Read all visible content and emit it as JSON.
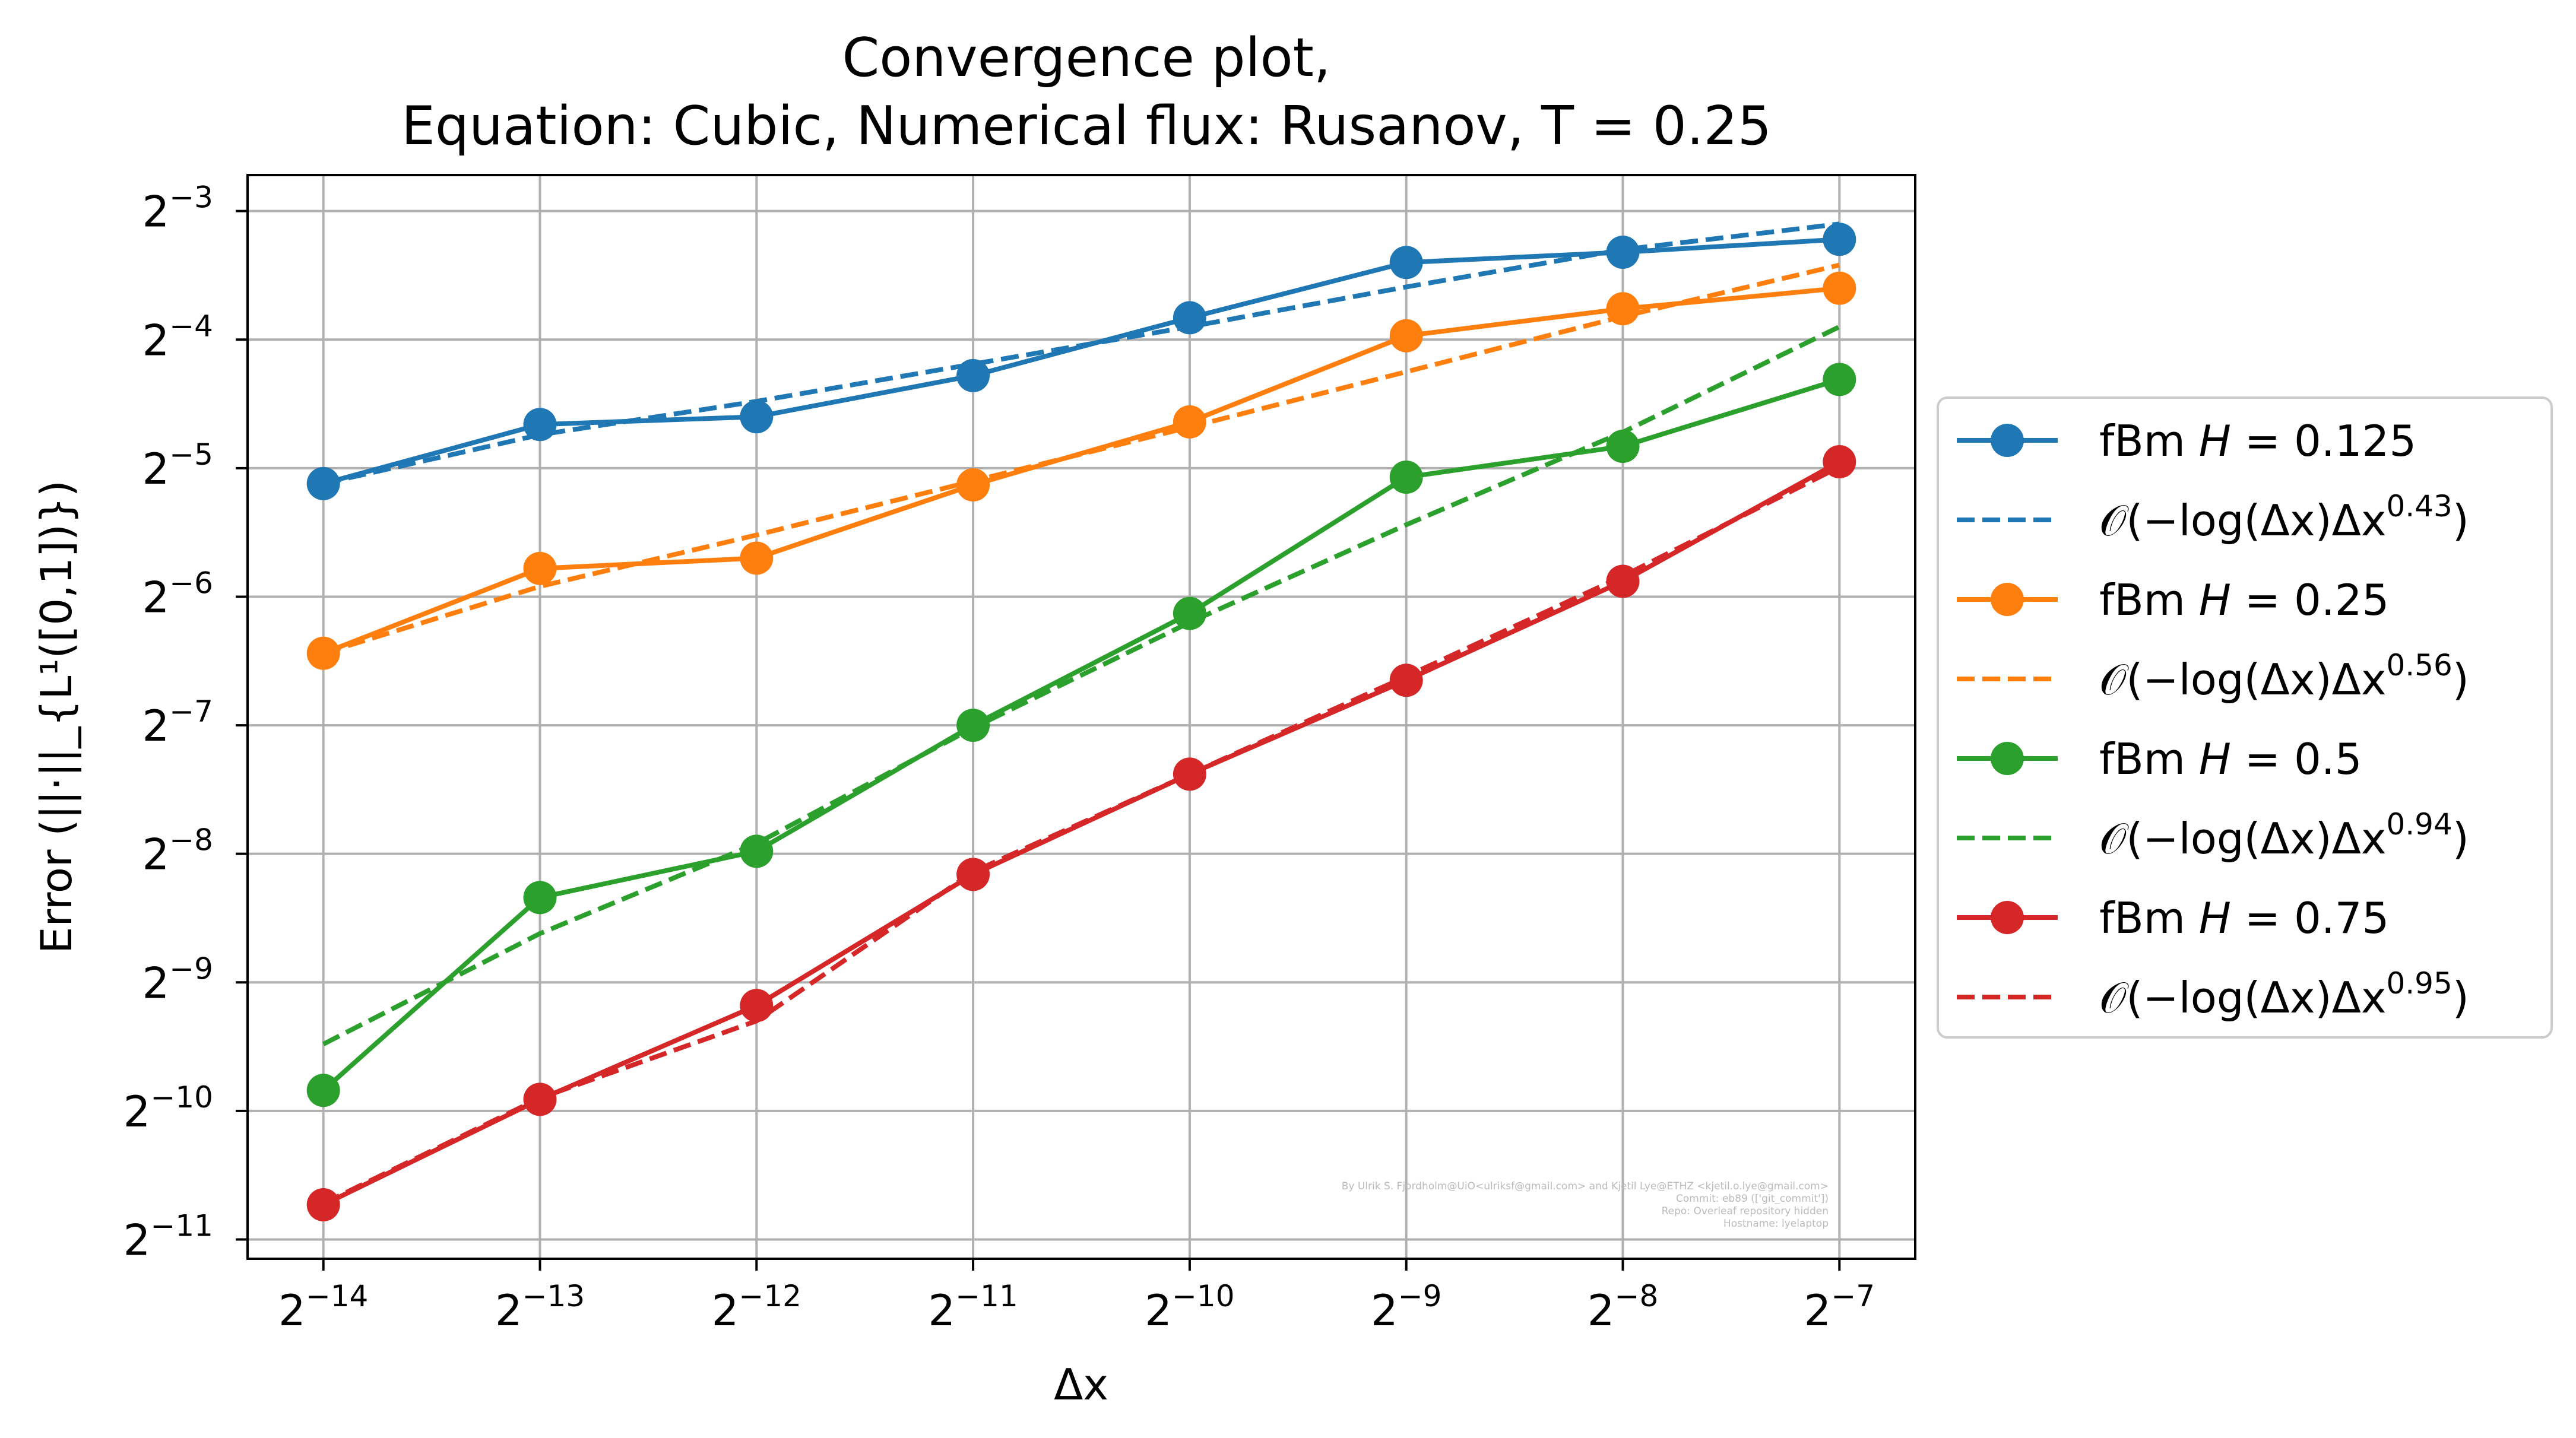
{
  "chart_data": {
    "type": "line",
    "title_lines": [
      "Convergence plot,",
      "Equation: Cubic, Numerical flux: Rusanov, T = 0.25"
    ],
    "xlabel": "Δx",
    "ylabel": "Error (||·||_{L¹([0,1])})",
    "xscale": "log2",
    "yscale": "log2",
    "x_exponents": [
      -14,
      -13,
      -12,
      -11,
      -10,
      -9,
      -8,
      -7
    ],
    "x_tick_labels": [
      "2^-14",
      "2^-13",
      "2^-12",
      "2^-11",
      "2^-10",
      "2^-9",
      "2^-8",
      "2^-7"
    ],
    "y_tick_exponents": [
      -3,
      -4,
      -5,
      -6,
      -7,
      -8,
      -9,
      -10,
      -11
    ],
    "y_tick_labels": [
      "2^-3",
      "2^-4",
      "2^-5",
      "2^-6",
      "2^-7",
      "2^-8",
      "2^-9",
      "2^-10",
      "2^-11"
    ],
    "ylim_log2": [
      -11.15,
      -2.72
    ],
    "xlim_log2": [
      -14.35,
      -6.65
    ],
    "grid": true,
    "legend_position": "outside right",
    "series": [
      {
        "name": "fBm H = 0.125",
        "kind": "data",
        "color": "#1f77b4",
        "log2_values": [
          -5.12,
          -4.66,
          -4.6,
          -4.28,
          -3.83,
          -3.4,
          -3.32,
          -3.22
        ]
      },
      {
        "name": "𝒪(−log(Δx)Δx^0.43)",
        "kind": "fit",
        "color": "#1f77b4",
        "log2_values": [
          -5.12,
          -4.74,
          -4.48,
          -4.19,
          -3.9,
          -3.59,
          -3.3,
          -3.1
        ]
      },
      {
        "name": "fBm H = 0.25",
        "kind": "data",
        "color": "#ff7f0e",
        "log2_values": [
          -6.44,
          -5.78,
          -5.7,
          -5.13,
          -4.64,
          -3.97,
          -3.76,
          -3.6
        ]
      },
      {
        "name": "𝒪(−log(Δx)Δx^0.56)",
        "kind": "fit",
        "color": "#ff7f0e",
        "log2_values": [
          -6.44,
          -5.92,
          -5.52,
          -5.1,
          -4.68,
          -4.25,
          -3.82,
          -3.42
        ]
      },
      {
        "name": "fBm H = 0.5",
        "kind": "data",
        "color": "#2ca02c",
        "log2_values": [
          -9.84,
          -8.34,
          -7.98,
          -7.0,
          -6.13,
          -5.07,
          -4.83,
          -4.31
        ]
      },
      {
        "name": "𝒪(−log(Δx)Δx^0.94)",
        "kind": "fit",
        "color": "#2ca02c",
        "log2_values": [
          -9.48,
          -8.62,
          -7.92,
          -7.02,
          -6.2,
          -5.44,
          -4.72,
          -3.9
        ]
      },
      {
        "name": "fBm H = 0.75",
        "kind": "data",
        "color": "#d62728",
        "log2_values": [
          -10.73,
          -9.91,
          -9.18,
          -8.16,
          -7.38,
          -6.65,
          -5.88,
          -4.95
        ]
      },
      {
        "name": "𝒪(−log(Δx)Δx^0.95)",
        "kind": "fit",
        "color": "#d62728",
        "log2_values": [
          -10.72,
          -9.9,
          -9.3,
          -8.14,
          -7.38,
          -6.62,
          -5.84,
          -4.99
        ]
      }
    ],
    "legend": [
      {
        "prefix": "fBm ",
        "var": "H",
        "suffix": " = 0.125",
        "kind": "data",
        "color": "#1f77b4"
      },
      {
        "prefix": "𝒪(−log(Δx)Δx",
        "sup": "0.43",
        "suffix": ")",
        "kind": "fit",
        "color": "#1f77b4"
      },
      {
        "prefix": "fBm ",
        "var": "H",
        "suffix": " = 0.25",
        "kind": "data",
        "color": "#ff7f0e"
      },
      {
        "prefix": "𝒪(−log(Δx)Δx",
        "sup": "0.56",
        "suffix": ")",
        "kind": "fit",
        "color": "#ff7f0e"
      },
      {
        "prefix": "fBm ",
        "var": "H",
        "suffix": " = 0.5",
        "kind": "data",
        "color": "#2ca02c"
      },
      {
        "prefix": "𝒪(−log(Δx)Δx",
        "sup": "0.94",
        "suffix": ")",
        "kind": "fit",
        "color": "#2ca02c"
      },
      {
        "prefix": "fBm ",
        "var": "H",
        "suffix": " = 0.75",
        "kind": "data",
        "color": "#d62728"
      },
      {
        "prefix": "𝒪(−log(Δx)Δx",
        "sup": "0.95",
        "suffix": ")",
        "kind": "fit",
        "color": "#d62728"
      }
    ],
    "watermark_lines": [
      "By Ulrik S. Fjordholm@UiO<ulriksf@gmail.com> and Kjetil Lye@ETHZ <kjetil.o.lye@gmail.com>",
      "Commit: eb89 (['git_commit'])",
      "Repo: Overleaf repository hidden",
      "Hostname: lyelaptop"
    ]
  }
}
